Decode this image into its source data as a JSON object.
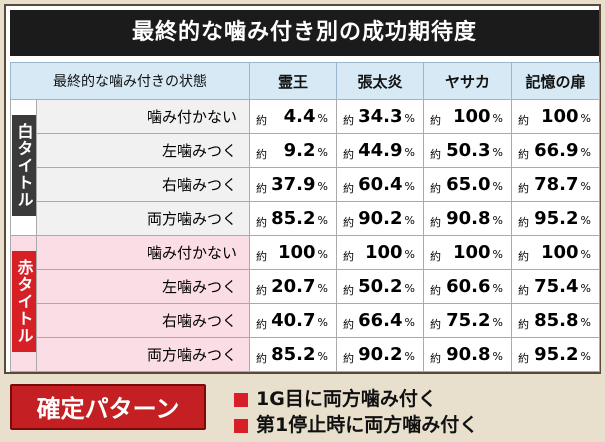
{
  "title": "最終的な噛み付き別の成功期待度",
  "header": {
    "state": "最終的な噛み付きの状態",
    "cols": [
      "霊王",
      "張太炎",
      "ヤサカ",
      "記憶の扉"
    ]
  },
  "groups": [
    {
      "label": "白タイトル",
      "rows": [
        {
          "label": "噛み付かない",
          "values": [
            "4.4",
            "34.3",
            "100",
            "100"
          ]
        },
        {
          "label": "左噛みつく",
          "values": [
            "9.2",
            "44.9",
            "50.3",
            "66.9"
          ]
        },
        {
          "label": "右噛みつく",
          "values": [
            "37.9",
            "60.4",
            "65.0",
            "78.7"
          ]
        },
        {
          "label": "両方噛みつく",
          "values": [
            "85.2",
            "90.2",
            "90.8",
            "95.2"
          ]
        }
      ]
    },
    {
      "label": "赤タイトル",
      "rows": [
        {
          "label": "噛み付かない",
          "values": [
            "100",
            "100",
            "100",
            "100"
          ]
        },
        {
          "label": "左噛みつく",
          "values": [
            "20.7",
            "50.2",
            "60.6",
            "75.4"
          ]
        },
        {
          "label": "右噛みつく",
          "values": [
            "40.7",
            "66.4",
            "75.2",
            "85.8"
          ]
        },
        {
          "label": "両方噛みつく",
          "values": [
            "85.2",
            "90.2",
            "90.8",
            "95.2"
          ]
        }
      ]
    }
  ],
  "prefix": "約",
  "unit": "%",
  "confirm": {
    "button": "確定パターン",
    "conditions": [
      "1G目に両方噛み付く",
      "第1停止時に両方噛み付く"
    ]
  }
}
